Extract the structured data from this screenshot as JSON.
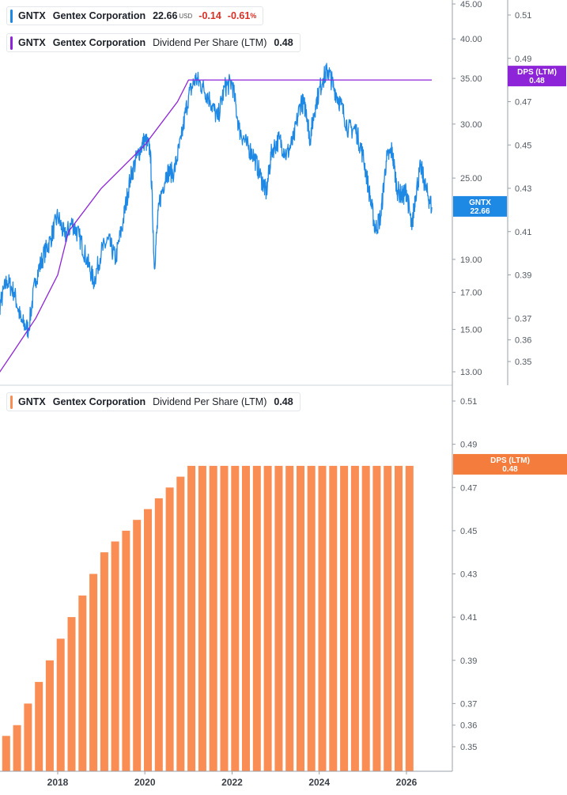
{
  "legend": {
    "price": {
      "ticker": "GNTX",
      "name": "Gentex Corporation",
      "price": "22.66",
      "currency": "USD",
      "change": "-0.14",
      "change_pct": "-0.61",
      "pct_sign": "%"
    },
    "dps_top": {
      "ticker": "GNTX",
      "name": "Gentex Corporation",
      "metric": "Dividend Per Share (LTM)",
      "value": "0.48"
    },
    "dps_bottom": {
      "ticker": "GNTX",
      "name": "Gentex Corporation",
      "metric": "Dividend Per Share (LTM)",
      "value": "0.48"
    }
  },
  "tags": {
    "price": {
      "label": "GNTX",
      "value": "22.66"
    },
    "dps_top": {
      "label": "DPS (LTM)",
      "value": "0.48"
    },
    "dps_bottom": {
      "label": "DPS (LTM)",
      "value": "0.48"
    }
  },
  "colors": {
    "price_line": "#1e88e5",
    "dps_line": "#8e24d8",
    "bars": "#f98d53",
    "dps_tag_top": "#8e24d8",
    "dps_tag_bottom": "#f47c3c",
    "price_tag": "#1e88e5"
  },
  "chart_data": [
    {
      "type": "line",
      "panel": "top",
      "y_scale": "log",
      "x_range": [
        "2016-07-01",
        "2026-10-01"
      ],
      "y_right_ticks": [
        13.0,
        15.0,
        17.0,
        19.0,
        25.0,
        30.0,
        35.0,
        40.0,
        45.0
      ],
      "y_right_tick_labels": [
        "13.00",
        "15.00",
        "17.00",
        "19.00",
        "25.00",
        "30.00",
        "35.00",
        "40.00",
        "45.00"
      ],
      "y_right2_ticks": [
        0.35,
        0.36,
        0.37,
        0.39,
        0.41,
        0.43,
        0.45,
        0.47,
        0.49,
        0.51
      ],
      "series": [
        {
          "name": "GNTX",
          "axis": "price",
          "points": [
            [
              "2016-07-01",
              14.4
            ],
            [
              "2016-09-01",
              16.2
            ],
            [
              "2016-11-01",
              17.7
            ],
            [
              "2017-01-01",
              17.0
            ],
            [
              "2017-03-01",
              15.4
            ],
            [
              "2017-05-01",
              15.0
            ],
            [
              "2017-07-01",
              17.8
            ],
            [
              "2017-09-01",
              19.2
            ],
            [
              "2017-11-01",
              20.3
            ],
            [
              "2018-01-01",
              22.0
            ],
            [
              "2018-03-01",
              20.5
            ],
            [
              "2018-05-01",
              21.5
            ],
            [
              "2018-07-01",
              20.5
            ],
            [
              "2018-09-01",
              19.0
            ],
            [
              "2018-11-01",
              17.6
            ],
            [
              "2019-01-01",
              19.5
            ],
            [
              "2019-03-01",
              20.3
            ],
            [
              "2019-05-01",
              19.0
            ],
            [
              "2019-07-01",
              21.5
            ],
            [
              "2019-09-01",
              25.0
            ],
            [
              "2019-11-01",
              27.0
            ],
            [
              "2020-01-01",
              28.5
            ],
            [
              "2020-02-15",
              27.5
            ],
            [
              "2020-03-20",
              18.5
            ],
            [
              "2020-05-01",
              23.0
            ],
            [
              "2020-07-01",
              25.5
            ],
            [
              "2020-09-01",
              25.5
            ],
            [
              "2020-11-01",
              28.5
            ],
            [
              "2021-01-01",
              33.0
            ],
            [
              "2021-03-01",
              35.0
            ],
            [
              "2021-05-01",
              34.0
            ],
            [
              "2021-07-01",
              32.5
            ],
            [
              "2021-09-01",
              30.5
            ],
            [
              "2021-11-01",
              34.0
            ],
            [
              "2022-01-01",
              34.5
            ],
            [
              "2022-03-01",
              29.5
            ],
            [
              "2022-05-01",
              28.0
            ],
            [
              "2022-07-01",
              27.0
            ],
            [
              "2022-09-01",
              25.0
            ],
            [
              "2022-10-15",
              23.8
            ],
            [
              "2022-12-01",
              27.5
            ],
            [
              "2023-02-01",
              28.5
            ],
            [
              "2023-04-01",
              27.0
            ],
            [
              "2023-06-01",
              28.5
            ],
            [
              "2023-08-01",
              32.5
            ],
            [
              "2023-09-15",
              31.5
            ],
            [
              "2023-10-15",
              28.5
            ],
            [
              "2023-12-01",
              32.0
            ],
            [
              "2024-02-01",
              35.0
            ],
            [
              "2024-03-15",
              36.0
            ],
            [
              "2024-05-01",
              34.0
            ],
            [
              "2024-07-01",
              32.0
            ],
            [
              "2024-09-01",
              29.5
            ],
            [
              "2024-11-01",
              29.5
            ],
            [
              "2025-01-01",
              27.0
            ],
            [
              "2025-03-01",
              23.5
            ],
            [
              "2025-04-15",
              21.0
            ],
            [
              "2025-06-01",
              22.0
            ],
            [
              "2025-07-15",
              26.5
            ],
            [
              "2025-09-01",
              27.5
            ],
            [
              "2025-10-15",
              24.0
            ],
            [
              "2025-12-01",
              23.5
            ],
            [
              "2026-01-01",
              24.0
            ],
            [
              "2026-02-15",
              21.0
            ],
            [
              "2026-03-15",
              23.5
            ],
            [
              "2026-05-01",
              26.0
            ],
            [
              "2026-06-15",
              24.0
            ],
            [
              "2026-08-01",
              22.66
            ]
          ]
        },
        {
          "name": "Dividend Per Share (LTM)",
          "axis": "dps",
          "points": [
            [
              "2016-07-01",
              0.34
            ],
            [
              "2017-01-01",
              0.355
            ],
            [
              "2017-07-01",
              0.37
            ],
            [
              "2018-01-01",
              0.39
            ],
            [
              "2018-04-01",
              0.41
            ],
            [
              "2019-01-01",
              0.43
            ],
            [
              "2020-01-01",
              0.45
            ],
            [
              "2020-10-01",
              0.47
            ],
            [
              "2021-01-01",
              0.48
            ],
            [
              "2026-08-01",
              0.48
            ]
          ]
        }
      ]
    },
    {
      "type": "bar",
      "panel": "bottom",
      "title": "",
      "x_ticks": [
        "2018",
        "2020",
        "2022",
        "2024",
        "2026"
      ],
      "y_ticks": [
        0.35,
        0.36,
        0.37,
        0.39,
        0.41,
        0.43,
        0.45,
        0.47,
        0.49,
        0.51
      ],
      "ylim": [
        0.34,
        0.52
      ],
      "series": [
        {
          "name": "Dividend Per Share (LTM)",
          "values": [
            0.35,
            0.355,
            0.36,
            0.37,
            0.38,
            0.39,
            0.4,
            0.41,
            0.42,
            0.43,
            0.44,
            0.445,
            0.45,
            0.455,
            0.46,
            0.465,
            0.47,
            0.475,
            0.48,
            0.48,
            0.48,
            0.48,
            0.48,
            0.48,
            0.48,
            0.48,
            0.48,
            0.48,
            0.48,
            0.48,
            0.48,
            0.48,
            0.48,
            0.48,
            0.48,
            0.48,
            0.48,
            0.48,
            0.48
          ],
          "start_quarter": "2016-Q4"
        }
      ]
    }
  ]
}
